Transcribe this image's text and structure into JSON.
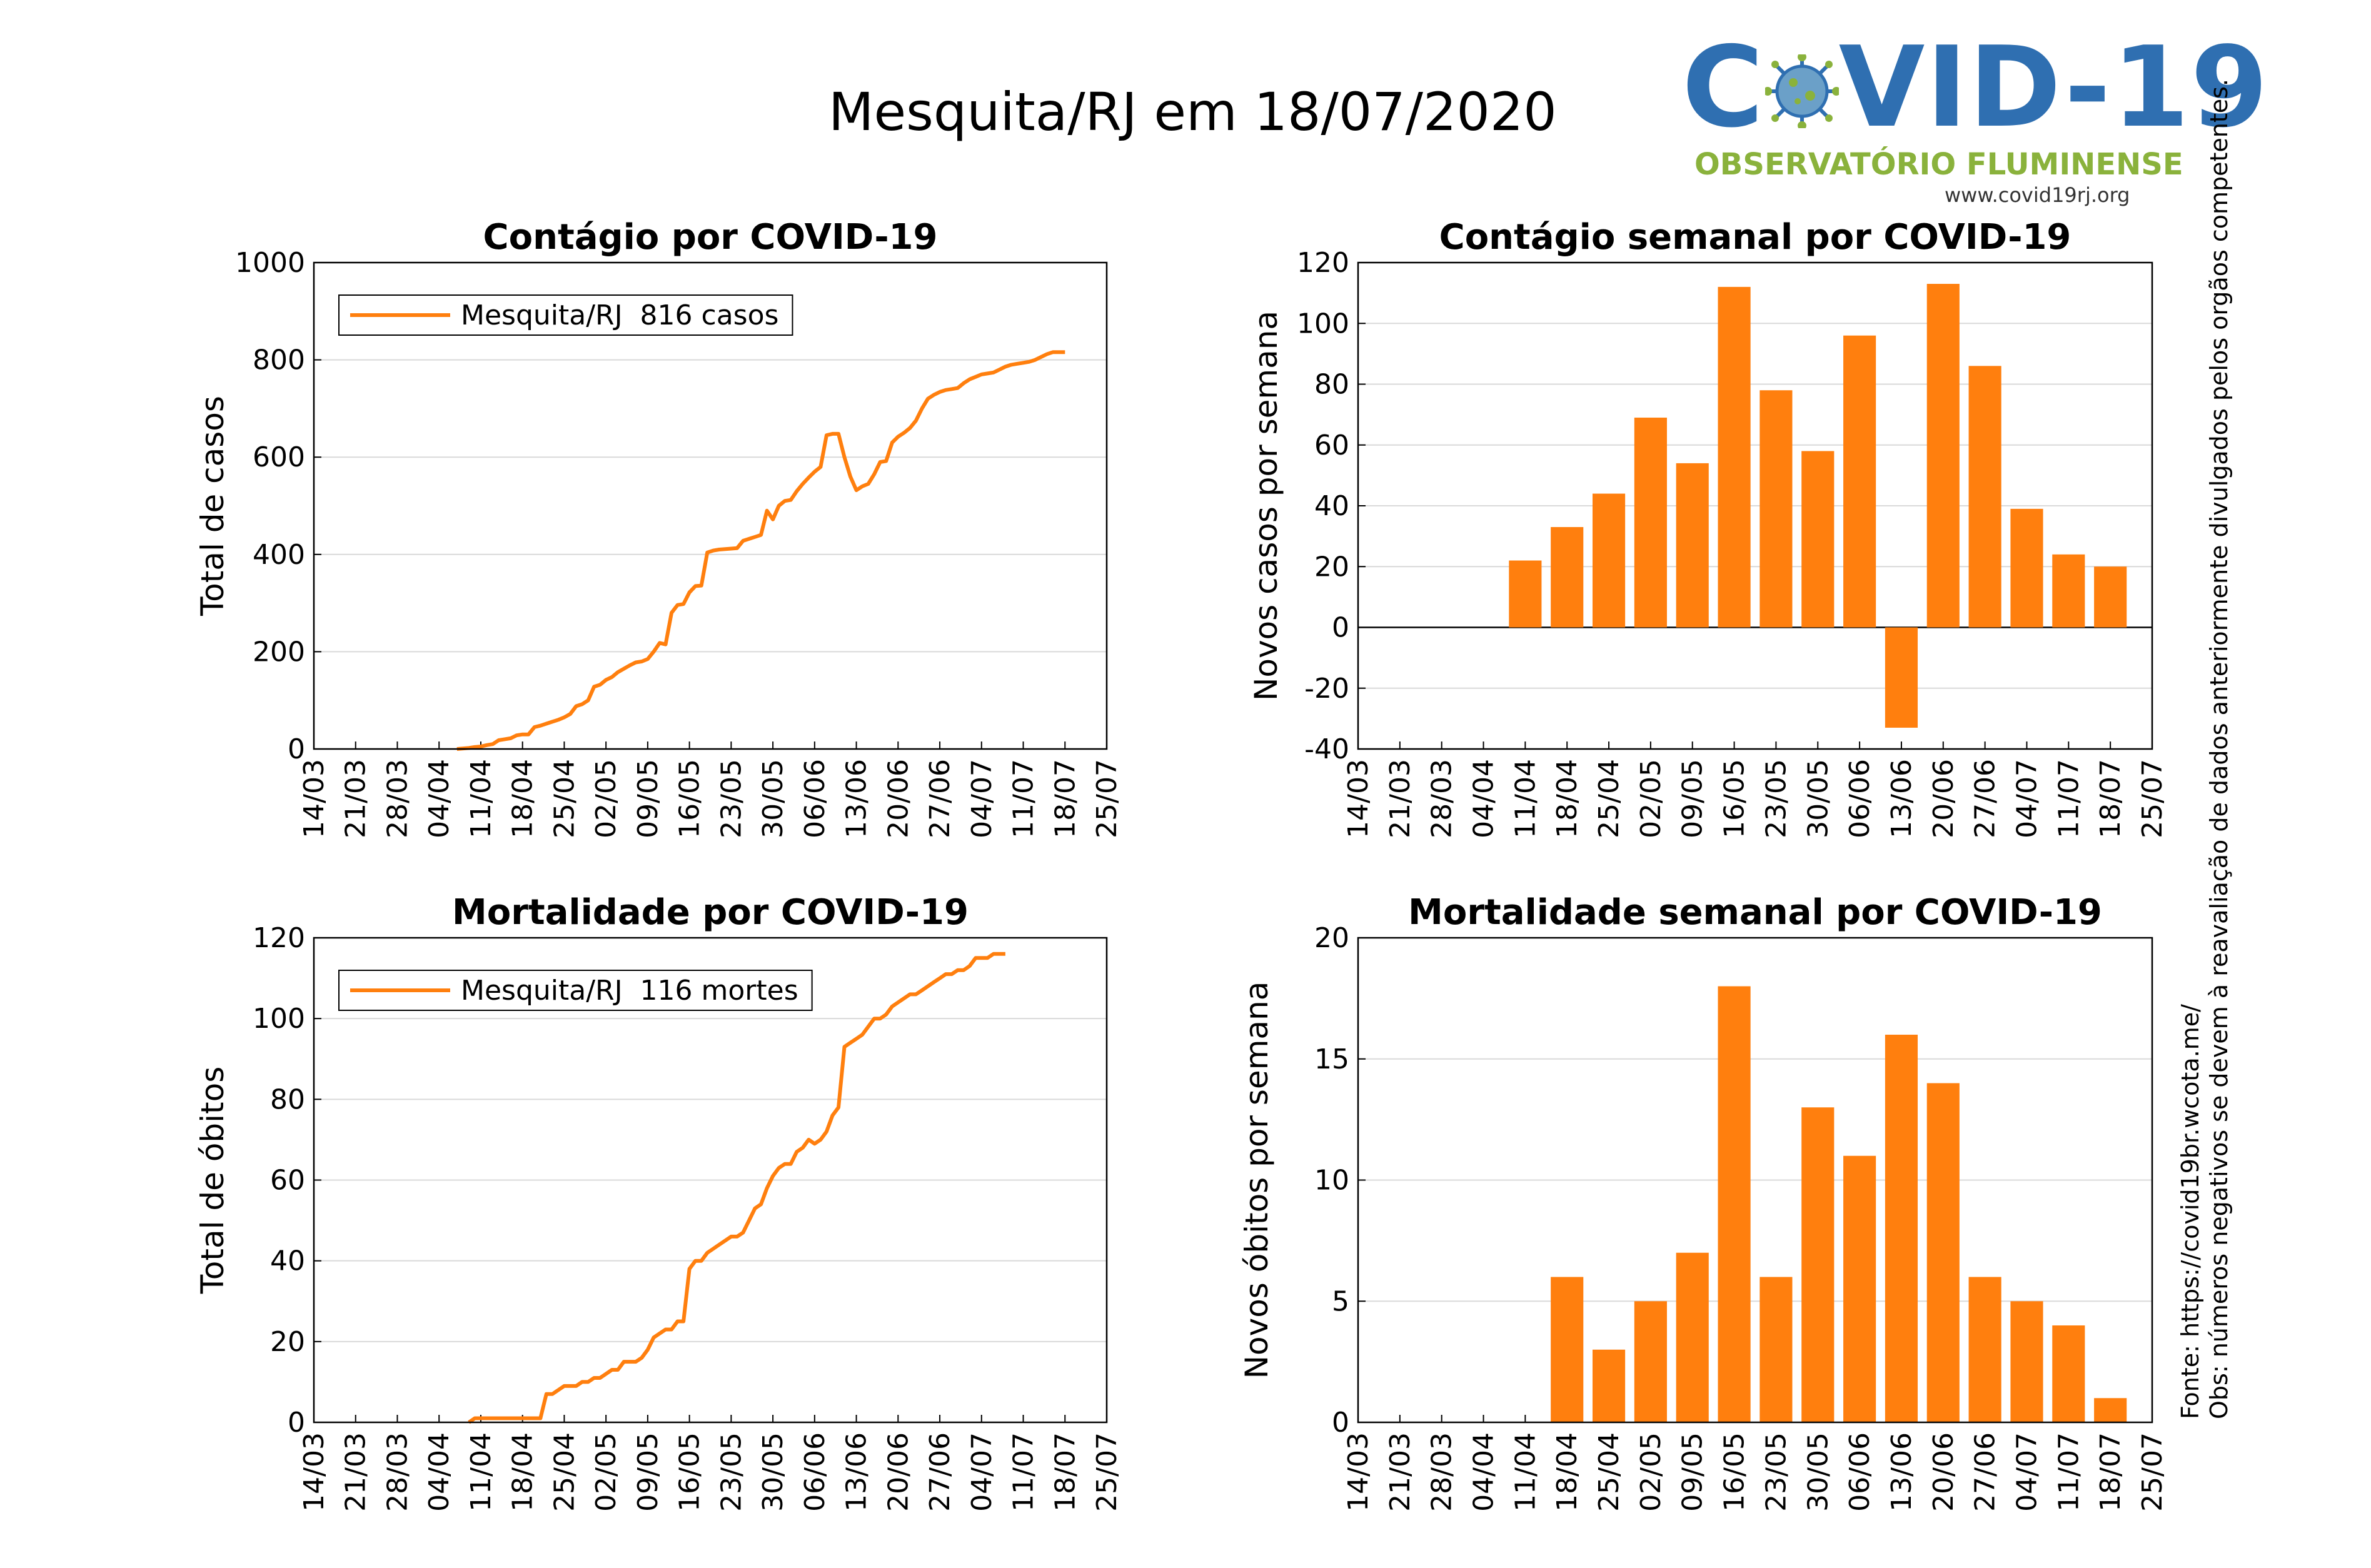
{
  "page_title": "Mesquita/RJ em 18/07/2020",
  "logo": {
    "title_left": "C",
    "title_right": "VID-19",
    "subtitle": "OBSERVATÓRIO FLUMINENSE",
    "url": "www.covid19rj.org",
    "virus_icon": "coronavirus-icon"
  },
  "notes": {
    "source": "Fonte: https://covid19br.wcota.me/",
    "obs": "Obs: números negativos se devem à reavaliação de dados anteriormente divulgados pelos orgãos competentes."
  },
  "colors": {
    "series": "#ff7f0e",
    "grid": "#d9d9d9",
    "axis": "#000000"
  },
  "chart_data": [
    {
      "type": "line",
      "title": "Contágio por COVID-19",
      "ylabel": "Total de casos",
      "xlabel": "",
      "ylim": [
        0,
        1000
      ],
      "yticks": [
        "0",
        "200",
        "400",
        "600",
        "800",
        "1000"
      ],
      "xticks": [
        "14/03",
        "21/03",
        "28/03",
        "04/04",
        "11/04",
        "18/04",
        "25/04",
        "02/05",
        "09/05",
        "16/05",
        "23/05",
        "30/05",
        "06/06",
        "13/06",
        "20/06",
        "27/06",
        "04/07",
        "11/07",
        "18/07",
        "25/07"
      ],
      "grid": "horizontal",
      "legend": "top-left",
      "series": [
        {
          "name": "Mesquita/RJ  816 casos",
          "points": [
            [
              24,
              0
            ],
            [
              26,
              2
            ],
            [
              27,
              4
            ],
            [
              28,
              5
            ],
            [
              29,
              8
            ],
            [
              30,
              10
            ],
            [
              31,
              18
            ],
            [
              32,
              20
            ],
            [
              33,
              22
            ],
            [
              34,
              28
            ],
            [
              35,
              30
            ],
            [
              36,
              30
            ],
            [
              37,
              45
            ],
            [
              38,
              48
            ],
            [
              39,
              52
            ],
            [
              40,
              56
            ],
            [
              41,
              60
            ],
            [
              42,
              65
            ],
            [
              43,
              72
            ],
            [
              44,
              88
            ],
            [
              45,
              92
            ],
            [
              46,
              100
            ],
            [
              47,
              128
            ],
            [
              48,
              132
            ],
            [
              49,
              142
            ],
            [
              50,
              148
            ],
            [
              51,
              158
            ],
            [
              52,
              165
            ],
            [
              53,
              172
            ],
            [
              54,
              178
            ],
            [
              55,
              180
            ],
            [
              56,
              185
            ],
            [
              57,
              200
            ],
            [
              58,
              218
            ],
            [
              59,
              215
            ],
            [
              60,
              280
            ],
            [
              61,
              296
            ],
            [
              62,
              298
            ],
            [
              63,
              322
            ],
            [
              64,
              335
            ],
            [
              65,
              336
            ],
            [
              66,
              404
            ],
            [
              67,
              408
            ],
            [
              68,
              410
            ],
            [
              69,
              411
            ],
            [
              70,
              412
            ],
            [
              71,
              413
            ],
            [
              72,
              428
            ],
            [
              73,
              432
            ],
            [
              74,
              436
            ],
            [
              75,
              440
            ],
            [
              76,
              490
            ],
            [
              77,
              472
            ],
            [
              78,
              500
            ],
            [
              79,
              510
            ],
            [
              80,
              512
            ],
            [
              81,
              530
            ],
            [
              82,
              545
            ],
            [
              83,
              558
            ],
            [
              84,
              570
            ],
            [
              85,
              580
            ],
            [
              86,
              645
            ],
            [
              87,
              648
            ],
            [
              88,
              648
            ],
            [
              89,
              600
            ],
            [
              90,
              560
            ],
            [
              91,
              532
            ],
            [
              92,
              540
            ],
            [
              93,
              545
            ],
            [
              94,
              565
            ],
            [
              95,
              590
            ],
            [
              96,
              592
            ],
            [
              97,
              630
            ],
            [
              98,
              642
            ],
            [
              99,
              650
            ],
            [
              100,
              660
            ],
            [
              101,
              675
            ],
            [
              102,
              700
            ],
            [
              103,
              720
            ],
            [
              104,
              728
            ],
            [
              105,
              734
            ],
            [
              106,
              738
            ],
            [
              107,
              740
            ],
            [
              108,
              742
            ],
            [
              109,
              752
            ],
            [
              110,
              760
            ],
            [
              111,
              765
            ],
            [
              112,
              770
            ],
            [
              113,
              772
            ],
            [
              114,
              774
            ],
            [
              115,
              780
            ],
            [
              116,
              786
            ],
            [
              117,
              790
            ],
            [
              118,
              792
            ],
            [
              119,
              794
            ],
            [
              120,
              796
            ],
            [
              121,
              800
            ],
            [
              122,
              806
            ],
            [
              123,
              812
            ],
            [
              124,
              816
            ],
            [
              125,
              816
            ],
            [
              126,
              816
            ]
          ]
        }
      ]
    },
    {
      "type": "bar",
      "title": "Contágio semanal por COVID-19",
      "ylabel": "Novos casos por semana",
      "xlabel": "",
      "ylim": [
        -40,
        120
      ],
      "yticks": [
        "-40",
        "-20",
        "0",
        "20",
        "40",
        "60",
        "80",
        "100",
        "120"
      ],
      "xticks": [
        "14/03",
        "21/03",
        "28/03",
        "04/04",
        "11/04",
        "18/04",
        "25/04",
        "02/05",
        "09/05",
        "16/05",
        "23/05",
        "30/05",
        "06/06",
        "13/06",
        "20/06",
        "27/06",
        "04/07",
        "11/07",
        "18/07",
        "25/07"
      ],
      "grid": "horizontal",
      "categories": [
        "11/04",
        "18/04",
        "25/04",
        "02/05",
        "09/05",
        "16/05",
        "23/05",
        "30/05",
        "06/06",
        "13/06",
        "20/06",
        "27/06",
        "04/07",
        "11/07",
        "18/07"
      ],
      "values": [
        22,
        33,
        44,
        69,
        54,
        112,
        78,
        58,
        96,
        -33,
        113,
        86,
        39,
        24,
        20
      ]
    },
    {
      "type": "line",
      "title": "Mortalidade por COVID-19",
      "ylabel": "Total de óbitos",
      "xlabel": "",
      "ylim": [
        0,
        120
      ],
      "yticks": [
        "0",
        "20",
        "40",
        "60",
        "80",
        "100",
        "120"
      ],
      "xticks": [
        "14/03",
        "21/03",
        "28/03",
        "04/04",
        "11/04",
        "18/04",
        "25/04",
        "02/05",
        "09/05",
        "16/05",
        "23/05",
        "30/05",
        "06/06",
        "13/06",
        "20/06",
        "27/06",
        "04/07",
        "11/07",
        "18/07",
        "25/07"
      ],
      "grid": "horizontal",
      "legend": "top-left",
      "series": [
        {
          "name": "Mesquita/RJ  116 mortes",
          "points": [
            [
              26,
              0
            ],
            [
              27,
              1
            ],
            [
              38,
              1
            ],
            [
              39,
              7
            ],
            [
              40,
              7
            ],
            [
              41,
              8
            ],
            [
              42,
              9
            ],
            [
              44,
              9
            ],
            [
              45,
              10
            ],
            [
              46,
              10
            ],
            [
              47,
              11
            ],
            [
              48,
              11
            ],
            [
              49,
              12
            ],
            [
              50,
              13
            ],
            [
              51,
              13
            ],
            [
              52,
              15
            ],
            [
              54,
              15
            ],
            [
              55,
              16
            ],
            [
              56,
              18
            ],
            [
              57,
              21
            ],
            [
              58,
              22
            ],
            [
              59,
              23
            ],
            [
              60,
              23
            ],
            [
              61,
              25
            ],
            [
              62,
              25
            ],
            [
              63,
              38
            ],
            [
              64,
              40
            ],
            [
              65,
              40
            ],
            [
              66,
              42
            ],
            [
              67,
              43
            ],
            [
              68,
              44
            ],
            [
              69,
              45
            ],
            [
              70,
              46
            ],
            [
              71,
              46
            ],
            [
              72,
              47
            ],
            [
              73,
              50
            ],
            [
              74,
              53
            ],
            [
              75,
              54
            ],
            [
              76,
              58
            ],
            [
              77,
              61
            ],
            [
              78,
              63
            ],
            [
              79,
              64
            ],
            [
              80,
              64
            ],
            [
              81,
              67
            ],
            [
              82,
              68
            ],
            [
              83,
              70
            ],
            [
              84,
              69
            ],
            [
              85,
              70
            ],
            [
              86,
              72
            ],
            [
              87,
              76
            ],
            [
              88,
              78
            ],
            [
              89,
              93
            ],
            [
              90,
              94
            ],
            [
              91,
              95
            ],
            [
              92,
              96
            ],
            [
              93,
              98
            ],
            [
              94,
              100
            ],
            [
              95,
              100
            ],
            [
              96,
              101
            ],
            [
              97,
              103
            ],
            [
              98,
              104
            ],
            [
              99,
              105
            ],
            [
              100,
              106
            ],
            [
              101,
              106
            ],
            [
              102,
              107
            ],
            [
              103,
              108
            ],
            [
              104,
              109
            ],
            [
              105,
              110
            ],
            [
              106,
              111
            ],
            [
              107,
              111
            ],
            [
              108,
              112
            ],
            [
              109,
              112
            ],
            [
              110,
              113
            ],
            [
              111,
              115
            ],
            [
              112,
              115
            ],
            [
              113,
              115
            ],
            [
              114,
              116
            ],
            [
              115,
              116
            ],
            [
              116,
              116
            ]
          ]
        }
      ]
    },
    {
      "type": "bar",
      "title": "Mortalidade semanal por COVID-19",
      "ylabel": "Novos óbitos por semana",
      "xlabel": "",
      "ylim": [
        0,
        20
      ],
      "yticks": [
        "0",
        "5",
        "10",
        "15",
        "20"
      ],
      "xticks": [
        "14/03",
        "21/03",
        "28/03",
        "04/04",
        "11/04",
        "18/04",
        "25/04",
        "02/05",
        "09/05",
        "16/05",
        "23/05",
        "30/05",
        "06/06",
        "13/06",
        "20/06",
        "27/06",
        "04/07",
        "11/07",
        "18/07",
        "25/07"
      ],
      "grid": "horizontal",
      "categories": [
        "18/04",
        "25/04",
        "02/05",
        "09/05",
        "16/05",
        "23/05",
        "30/05",
        "06/06",
        "13/06",
        "20/06",
        "27/06",
        "04/07",
        "11/07",
        "18/07"
      ],
      "values": [
        6,
        3,
        5,
        7,
        18,
        6,
        13,
        11,
        16,
        14,
        6,
        5,
        4,
        1
      ]
    }
  ]
}
